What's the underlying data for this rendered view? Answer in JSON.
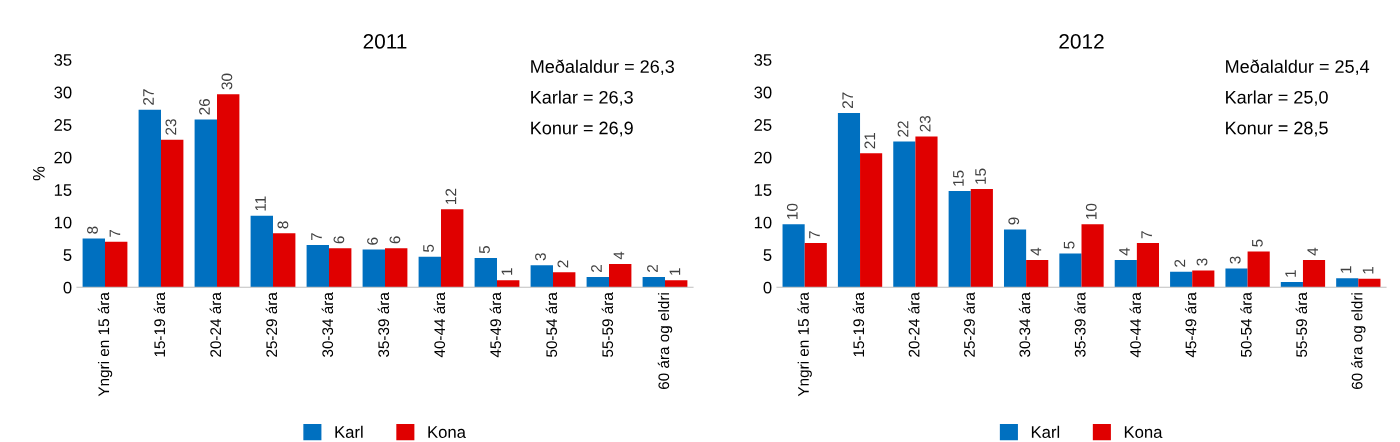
{
  "chart_data": [
    {
      "type": "bar",
      "title": "2011",
      "ylabel": "%",
      "categories": [
        "Yngri en 15 ára",
        "15-19 ára",
        "20-24 ára",
        "25-29 ára",
        "30-34 ára",
        "35-39 ára",
        "40-44 ára",
        "45-49 ára",
        "50-54 ára",
        "55-59 ára",
        "60 ára og eldri"
      ],
      "series": [
        {
          "name": "Karl",
          "color": "#0070c0",
          "values": [
            7.5,
            27.3,
            25.8,
            11.0,
            6.5,
            5.8,
            4.7,
            4.5,
            3.4,
            1.6,
            1.6
          ],
          "value_labels": [
            "8",
            "27",
            "26",
            "11",
            "7",
            "6",
            "5",
            "5",
            "3",
            "2",
            "2"
          ]
        },
        {
          "name": "Kona",
          "color": "#e00000",
          "values": [
            7.0,
            22.7,
            29.7,
            8.3,
            6.0,
            6.0,
            12.0,
            1.1,
            2.3,
            3.6,
            1.1
          ],
          "value_labels": [
            "7",
            "23",
            "30",
            "8",
            "6",
            "6",
            "12",
            "1",
            "2",
            "4",
            "1"
          ]
        }
      ],
      "ylim": [
        0,
        35
      ],
      "yticks": [
        0,
        5,
        10,
        15,
        20,
        25,
        30,
        35
      ],
      "grid": false,
      "legend": "bottom",
      "annotations": [
        "Meðalaldur = 26,3",
        "Karlar = 26,3",
        "Konur = 26,9"
      ]
    },
    {
      "type": "bar",
      "title": "2012",
      "categories": [
        "Yngri en 15 ára",
        "15-19 ára",
        "20-24 ára",
        "25-29 ára",
        "30-34 ára",
        "35-39 ára",
        "40-44 ára",
        "45-49 ára",
        "50-54 ára",
        "55-59 ára",
        "60 ára og eldri"
      ],
      "series": [
        {
          "name": "Karl",
          "color": "#0070c0",
          "values": [
            9.7,
            26.8,
            22.4,
            14.8,
            8.9,
            5.2,
            4.2,
            2.4,
            2.9,
            0.8,
            1.4
          ],
          "value_labels": [
            "10",
            "27",
            "22",
            "15",
            "9",
            "5",
            "4",
            "2",
            "3",
            "1",
            "1"
          ]
        },
        {
          "name": "Kona",
          "color": "#e00000",
          "values": [
            6.8,
            20.6,
            23.2,
            15.1,
            4.2,
            9.7,
            6.8,
            2.6,
            5.5,
            4.2,
            1.3
          ],
          "value_labels": [
            "7",
            "21",
            "23",
            "15",
            "4",
            "10",
            "7",
            "3",
            "5",
            "4",
            "1"
          ]
        }
      ],
      "ylim": [
        0,
        35
      ],
      "yticks": [
        0,
        5,
        10,
        15,
        20,
        25,
        30,
        35
      ],
      "grid": false,
      "legend": "bottom",
      "annotations": [
        "Meðalaldur = 25,4",
        "Karlar = 25,0",
        "Konur = 28,5"
      ]
    }
  ]
}
